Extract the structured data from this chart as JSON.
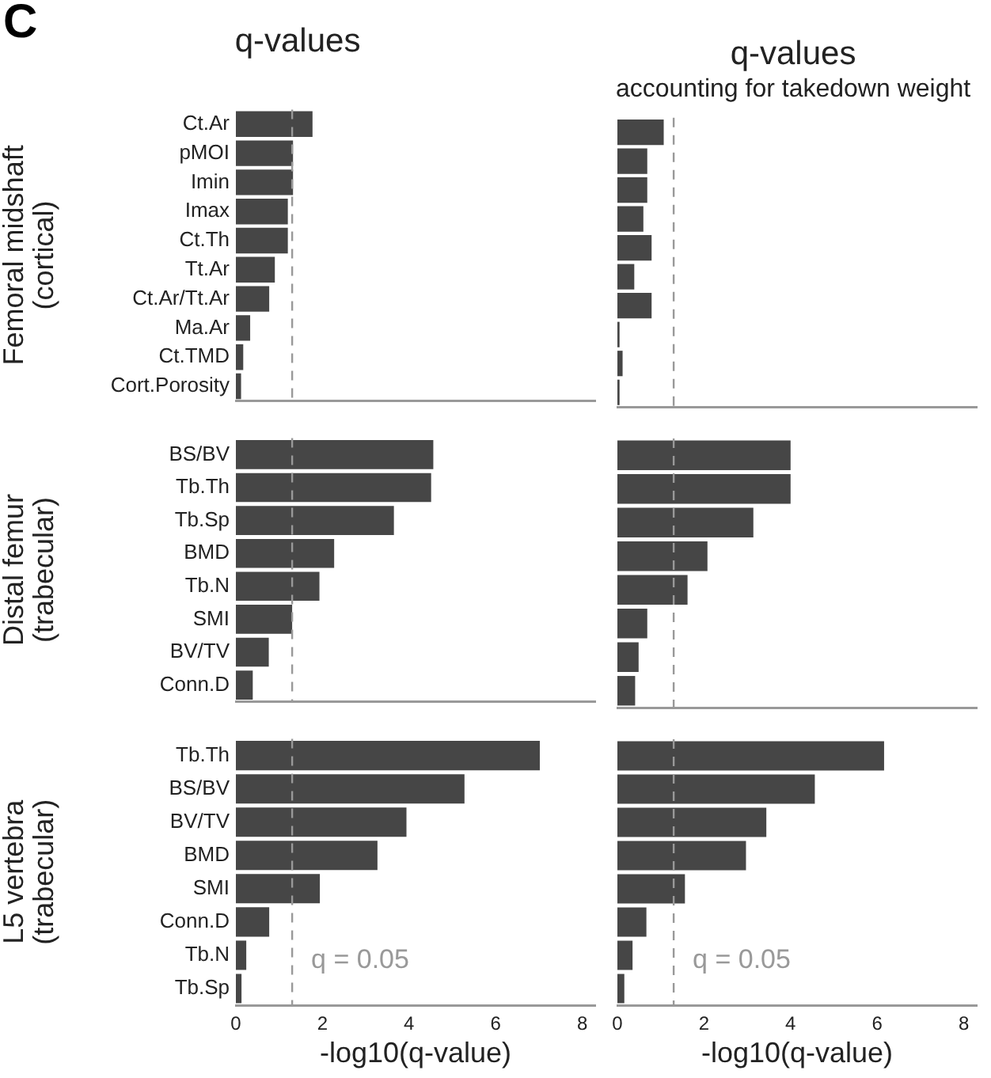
{
  "chart_data": [
    {
      "type": "bar",
      "orientation": "horizontal",
      "title": "q-values",
      "ylabel": "Femoral midshaft\n(cortical)",
      "annotations": [
        "C"
      ],
      "tick_labels": "y",
      "categories": [
        "Ct.Ar",
        "pMOI",
        "Imin",
        "Imax",
        "Ct.Th",
        "Tt.Ar",
        "Ct.Ar/Tt.Ar",
        "Ma.Ar",
        "Ct.TMD",
        "Cort.Porosity"
      ],
      "values": [
        1.77,
        1.32,
        1.32,
        1.2,
        1.2,
        0.9,
        0.77,
        0.33,
        0.17,
        0.12
      ],
      "color": "#464646",
      "xlim": [
        0,
        8.3
      ],
      "xticks": [
        0,
        2,
        4,
        6,
        8
      ],
      "ref_lines": [
        {
          "axis": "x",
          "value": 1.3,
          "color": "#999999",
          "line_style": "dashed"
        }
      ],
      "grid": false,
      "legend": false
    },
    {
      "type": "bar",
      "orientation": "horizontal",
      "title": "q-values",
      "subtitle": "accounting for takedown weight",
      "tick_labels": false,
      "categories": [
        null,
        null,
        null,
        null,
        null,
        null,
        null,
        null,
        null,
        null
      ],
      "values": [
        1.07,
        0.69,
        0.69,
        0.6,
        0.79,
        0.39,
        0.79,
        0.05,
        0.12,
        0.05
      ],
      "color": "#464646",
      "xlim": [
        0,
        8.3
      ],
      "xticks": [
        0,
        2,
        4,
        6,
        8
      ],
      "ref_lines": [
        {
          "axis": "x",
          "value": 1.3,
          "color": "#999999",
          "line_style": "dashed"
        }
      ],
      "grid": false,
      "legend": false
    },
    {
      "type": "bar",
      "orientation": "horizontal",
      "ylabel": "Distal femur\n(trabecular)",
      "tick_labels": "y",
      "categories": [
        "BS/BV",
        "Tb.Th",
        "Tb.Sp",
        "BMD",
        "Tb.N",
        "SMI",
        "BV/TV",
        "Conn.D"
      ],
      "values": [
        4.56,
        4.51,
        3.65,
        2.27,
        1.93,
        1.3,
        0.76,
        0.39
      ],
      "color": "#464646",
      "xlim": [
        0,
        8.3
      ],
      "xticks": [
        0,
        2,
        4,
        6,
        8
      ],
      "ref_lines": [
        {
          "axis": "x",
          "value": 1.3,
          "color": "#999999",
          "line_style": "dashed"
        }
      ],
      "grid": false,
      "legend": false
    },
    {
      "type": "bar",
      "orientation": "horizontal",
      "tick_labels": false,
      "categories": [
        null,
        null,
        null,
        null,
        null,
        null,
        null,
        null
      ],
      "values": [
        4.0,
        4.0,
        3.14,
        2.08,
        1.62,
        0.69,
        0.49,
        0.41
      ],
      "color": "#464646",
      "xlim": [
        0,
        8.3
      ],
      "xticks": [
        0,
        2,
        4,
        6,
        8
      ],
      "ref_lines": [
        {
          "axis": "x",
          "value": 1.3,
          "color": "#999999",
          "line_style": "dashed"
        }
      ],
      "grid": false,
      "legend": false
    },
    {
      "type": "bar",
      "orientation": "horizontal",
      "ylabel": "L5 vertebra\n(trabecular)",
      "xlabel": "-log10(q-value)",
      "categories": [
        "Tb.Th",
        "BS/BV",
        "BV/TV",
        "BMD",
        "SMI",
        "Conn.D",
        "Tb.N",
        "Tb.Sp"
      ],
      "values": [
        7.02,
        5.28,
        3.94,
        3.27,
        1.94,
        0.77,
        0.24,
        0.13
      ],
      "color": "#464646",
      "xlim": [
        0,
        8.3
      ],
      "xticks": [
        0,
        2,
        4,
        6,
        8
      ],
      "annotations": [
        {
          "text": "q = 0.05",
          "x": 1.3
        }
      ],
      "ref_lines": [
        {
          "axis": "x",
          "value": 1.3,
          "color": "#999999",
          "line_style": "dashed"
        }
      ],
      "grid": false,
      "legend": false
    },
    {
      "type": "bar",
      "orientation": "horizontal",
      "xlabel": "-log10(q-value)",
      "tick_labels": "x",
      "categories": [
        null,
        null,
        null,
        null,
        null,
        null,
        null,
        null
      ],
      "values": [
        6.16,
        4.56,
        3.44,
        2.97,
        1.56,
        0.67,
        0.35,
        0.16
      ],
      "color": "#464646",
      "xlim": [
        0,
        8.3
      ],
      "xticks": [
        0,
        2,
        4,
        6,
        8
      ],
      "annotations": [
        {
          "text": "q = 0.05",
          "x": 1.3
        }
      ],
      "ref_lines": [
        {
          "axis": "x",
          "value": 1.3,
          "color": "#999999",
          "line_style": "dashed"
        }
      ],
      "grid": false,
      "legend": false
    }
  ]
}
